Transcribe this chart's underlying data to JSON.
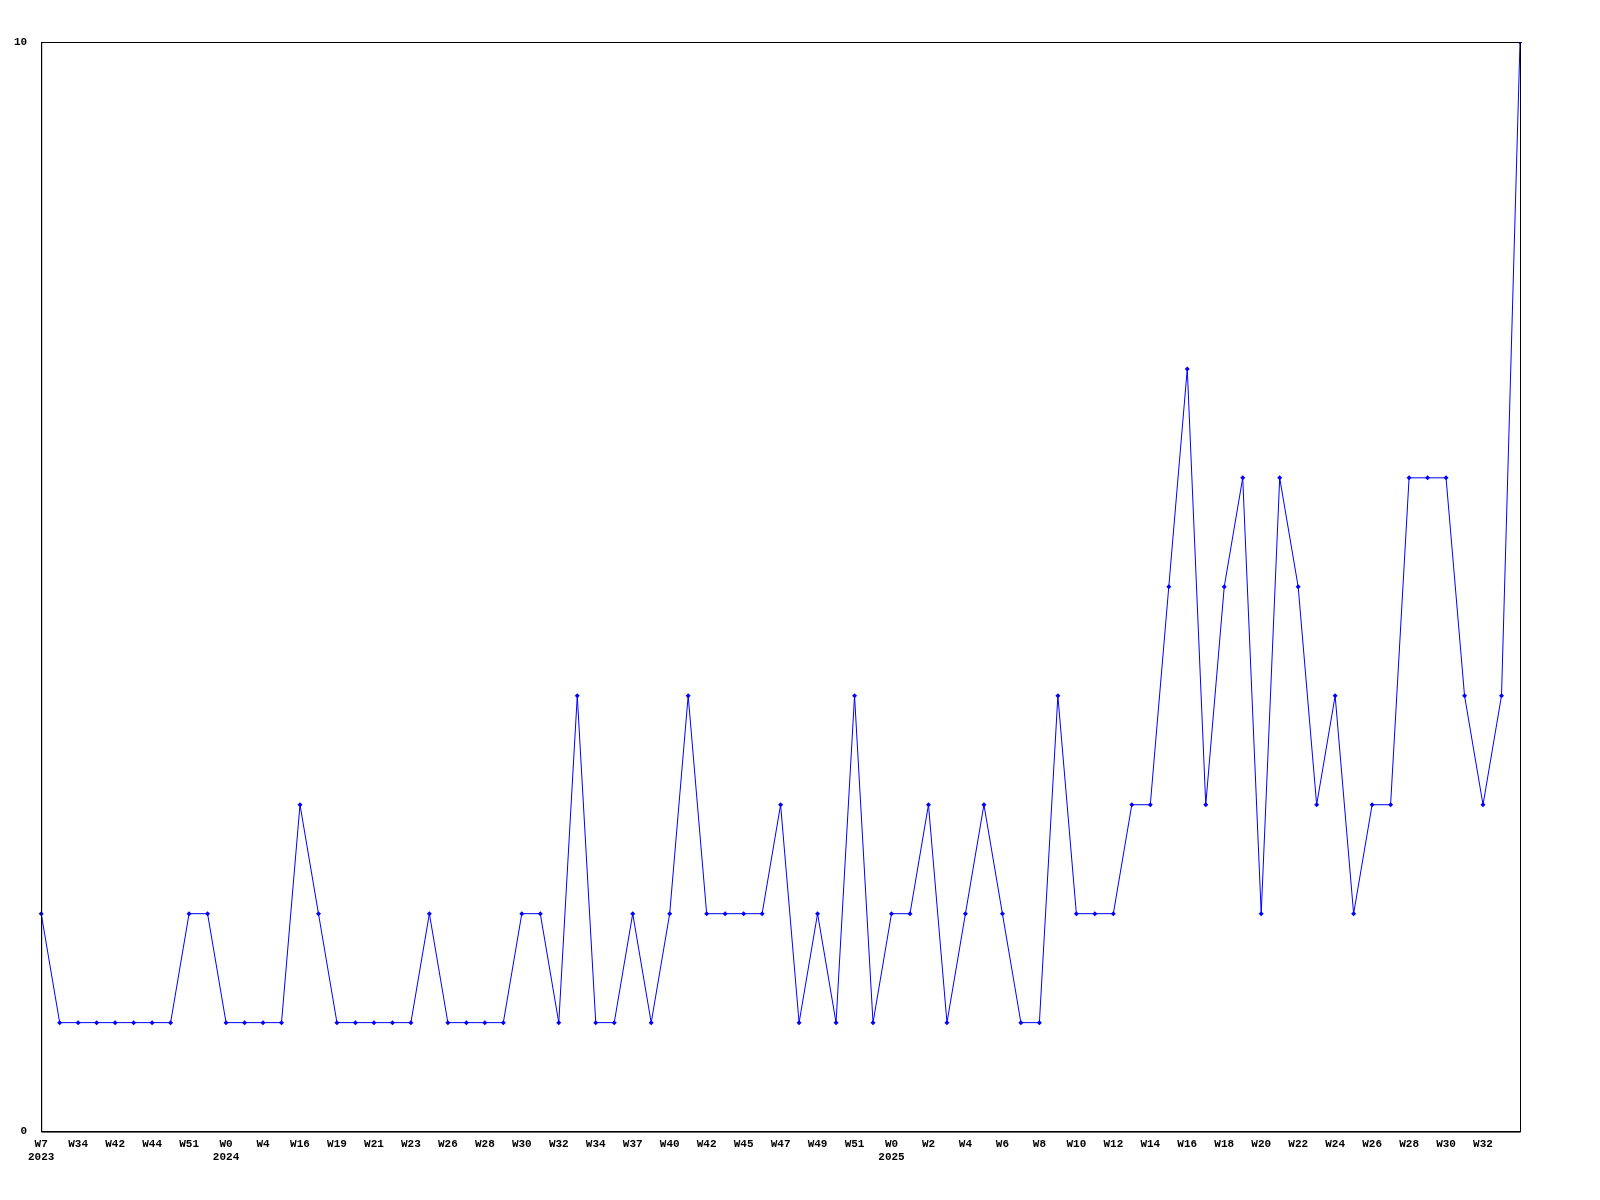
{
  "chart_data": {
    "type": "line",
    "categories": [
      "W7\n2023",
      null,
      "W34",
      null,
      "W42",
      null,
      "W44",
      null,
      "W51",
      null,
      "W0\n2024",
      null,
      "W4",
      null,
      "W16",
      null,
      "W19",
      null,
      "W21",
      null,
      "W23",
      null,
      "W26",
      null,
      "W28",
      null,
      "W30",
      null,
      "W32",
      null,
      "W34",
      null,
      "W37",
      null,
      "W40",
      null,
      "W42",
      null,
      "W45",
      null,
      "W47",
      null,
      "W49",
      null,
      "W51",
      null,
      "W0\n2025",
      null,
      "W2",
      null,
      "W4",
      null,
      "W6",
      null,
      "W8",
      null,
      "W10",
      null,
      "W12",
      null,
      "W14",
      null,
      "W16",
      null,
      "W18",
      null,
      "W20",
      null,
      "W22",
      null,
      "W24",
      null,
      "W26",
      null,
      "W28",
      null,
      "W30",
      null,
      "W32",
      null,
      null
    ],
    "series": [
      {
        "color": "#0000ff",
        "values": [
          2,
          1,
          1,
          1,
          1,
          1,
          1,
          1,
          2,
          2,
          1,
          1,
          1,
          1,
          3,
          2,
          1,
          1,
          1,
          1,
          1,
          2,
          1,
          1,
          1,
          1,
          2,
          2,
          1,
          4,
          1,
          1,
          2,
          1,
          2,
          4,
          2,
          2,
          2,
          2,
          3,
          1,
          2,
          1,
          4,
          1,
          2,
          2,
          3,
          1,
          2,
          3,
          2,
          1,
          1,
          4,
          2,
          2,
          2,
          3,
          3,
          5,
          7,
          3,
          5,
          6,
          2,
          6,
          5,
          3,
          4,
          2,
          3,
          3,
          6,
          6,
          6,
          4,
          3,
          4,
          10
        ]
      }
    ],
    "ylim": [
      0,
      10
    ],
    "yticks": [
      0,
      10
    ],
    "grid": false,
    "legend": false,
    "marker": "diamond",
    "line_style": "solid"
  }
}
